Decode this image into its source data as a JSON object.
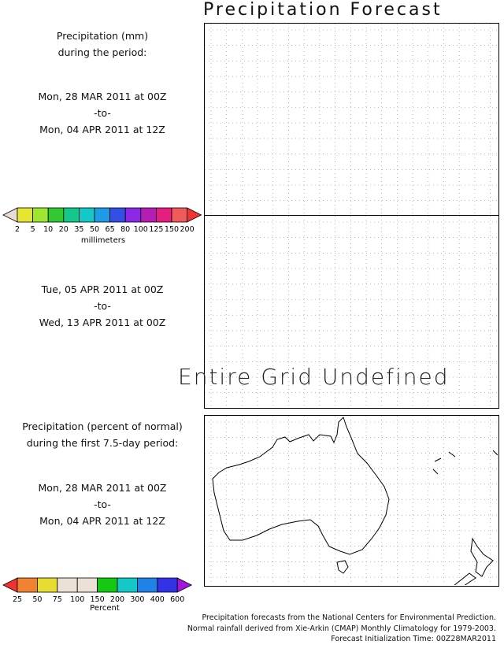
{
  "title": "Precipitation Forecast",
  "left_labels": {
    "period1_header_line1": "Precipitation (mm)",
    "period1_header_line2": "during the period:",
    "period1_start": "Mon, 28 MAR 2011 at 00Z",
    "period1_to": "-to-",
    "period1_end": "Mon, 04 APR 2011 at 12Z",
    "period2_start": "Tue, 05 APR 2011 at 00Z",
    "period2_to": "-to-",
    "period2_end": "Wed, 13 APR 2011 at 00Z",
    "pct_header_line1": "Precipitation (percent of normal)",
    "pct_header_line2": "during the first 7.5-day period:",
    "pct_start": "Mon, 28 MAR 2011 at 00Z",
    "pct_to": "-to-",
    "pct_end": "Mon, 04 APR 2011 at 12Z"
  },
  "undefined_text": "Entire Grid Undefined",
  "mm_colorbar": {
    "unit": "millimeters",
    "ticks": [
      "2",
      "5",
      "10",
      "20",
      "35",
      "50",
      "65",
      "80",
      "100",
      "125",
      "150",
      "200"
    ],
    "colors": [
      "#e6dcd2",
      "#e6e632",
      "#9ee632",
      "#32c832",
      "#14c88c",
      "#14c8c8",
      "#1e9be6",
      "#3250e6",
      "#8c28e6",
      "#b41eb4",
      "#e61e82",
      "#f05a5a",
      "#f03232"
    ]
  },
  "pct_colorbar": {
    "unit": "Percent",
    "ticks": [
      "25",
      "50",
      "75",
      "100",
      "150",
      "200",
      "300",
      "400",
      "600"
    ],
    "colors": [
      "#f03232",
      "#f08232",
      "#e6dc32",
      "#ebe1d7",
      "#ebe1d7",
      "#14c814",
      "#14c8c8",
      "#1e82e6",
      "#3232e6",
      "#a014dc"
    ]
  },
  "footer": {
    "line1": "Precipitation forecasts from the National Centers for Environmental Prediction.",
    "line2": "Normal rainfall derived from Xie-Arkin (CMAP) Monthly Climatology for 1979-2003.",
    "line3": "Forecast Initialization Time: 00Z28MAR2011"
  },
  "chart_data": [
    {
      "type": "heatmap",
      "title": "Precipitation Forecast",
      "panel": "period 1 precipitation (mm)",
      "values": []
    },
    {
      "type": "heatmap",
      "panel": "period 2 precipitation (mm)",
      "values": [],
      "note": "Entire Grid Undefined"
    },
    {
      "type": "heatmap",
      "panel": "percent of normal, first 7.5-day period",
      "values": [],
      "grid": true,
      "map": "Australia and New Zealand coastline"
    }
  ]
}
